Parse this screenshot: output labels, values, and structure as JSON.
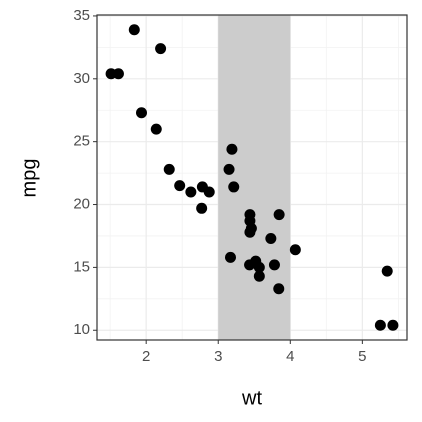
{
  "chart_data": {
    "type": "scatter",
    "x_label": "wt",
    "y_label": "mpg",
    "x": [
      2.62,
      2.875,
      2.32,
      3.215,
      3.44,
      3.46,
      3.57,
      3.19,
      3.15,
      3.44,
      3.44,
      4.07,
      3.73,
      3.78,
      5.25,
      5.424,
      5.345,
      2.2,
      1.615,
      1.835,
      2.465,
      3.52,
      3.435,
      3.84,
      3.845,
      1.935,
      2.14,
      1.513,
      3.17,
      2.77,
      3.57,
      2.78
    ],
    "values": [
      21.0,
      21.0,
      22.8,
      21.4,
      18.7,
      18.1,
      14.3,
      24.4,
      22.8,
      19.2,
      17.8,
      16.4,
      17.3,
      15.2,
      10.4,
      10.4,
      14.7,
      32.4,
      30.4,
      33.9,
      21.5,
      15.5,
      15.2,
      13.3,
      19.2,
      27.3,
      26.0,
      30.4,
      15.8,
      19.7,
      15.0,
      21.4
    ],
    "color": "#000000",
    "highlight": {
      "xmin": 3,
      "xmax": 4,
      "color": "#cccccc"
    },
    "xlim": [
      1.3175,
      5.6195
    ],
    "xticks": [
      2,
      3,
      4,
      5
    ],
    "ylim": [
      9.225,
      35.075
    ],
    "yticks": [
      10,
      15,
      20,
      25,
      30,
      35
    ],
    "grid": true
  }
}
